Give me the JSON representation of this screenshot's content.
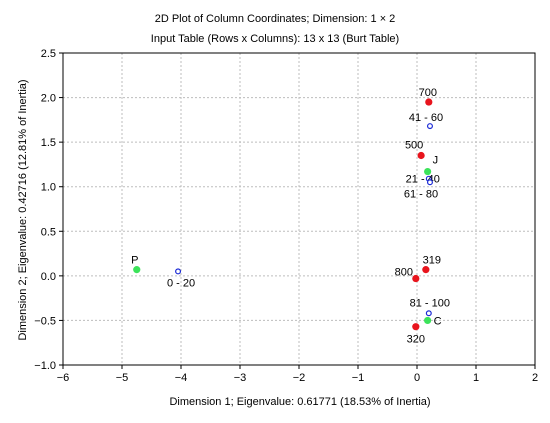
{
  "chart_data": {
    "type": "scatter",
    "title": "2D Plot of Column Coordinates; Dimension:   1 × 2",
    "subtitle": "Input Table (Rows x Columns): 13 x 13 (Burt Table)",
    "xlabel": "Dimension 1; Eigenvalue: 0.61771 (18.53% of Inertia)",
    "ylabel": "Dimension 2; Eigenvalue: 0.42716 (12.81% of Inertia)",
    "xlim": [
      -6,
      2
    ],
    "ylim": [
      -1.0,
      2.5
    ],
    "x_ticks": [
      "−6",
      "−5",
      "−4",
      "−3",
      "−2",
      "−1",
      "0",
      "1",
      "2"
    ],
    "y_ticks": [
      "−1.0",
      "−0.5",
      "0.0",
      "0.5",
      "1.0",
      "1.5",
      "2.0",
      "2.5"
    ],
    "grid": true,
    "colors": {
      "red": "#e8141d",
      "green": "#3ce35a",
      "blue": "#1c2bd6"
    },
    "points": [
      {
        "label": "700",
        "x": 0.2,
        "y": 1.95,
        "style": "red-filled"
      },
      {
        "label": "41 - 60",
        "x": 0.22,
        "y": 1.68,
        "style": "blue-open"
      },
      {
        "label": "500",
        "x": 0.07,
        "y": 1.35,
        "style": "red-filled"
      },
      {
        "label": "J",
        "x": 0.18,
        "y": 1.17,
        "style": "green-filled"
      },
      {
        "label": "21 - 40",
        "x": 0.2,
        "y": 1.09,
        "style": "blue-open"
      },
      {
        "label": "61 - 80",
        "x": 0.22,
        "y": 1.05,
        "style": "blue-open"
      },
      {
        "label": "P",
        "x": -4.75,
        "y": 0.07,
        "style": "green-filled"
      },
      {
        "label": "0 - 20",
        "x": -4.05,
        "y": 0.05,
        "style": "blue-open"
      },
      {
        "label": "319",
        "x": 0.15,
        "y": 0.07,
        "style": "red-filled"
      },
      {
        "label": "800",
        "x": -0.02,
        "y": -0.03,
        "style": "red-filled"
      },
      {
        "label": "81 - 100",
        "x": 0.2,
        "y": -0.42,
        "style": "blue-open"
      },
      {
        "label": "C",
        "x": 0.18,
        "y": -0.5,
        "style": "green-filled"
      },
      {
        "label": "320",
        "x": -0.02,
        "y": -0.57,
        "style": "red-filled"
      }
    ]
  }
}
